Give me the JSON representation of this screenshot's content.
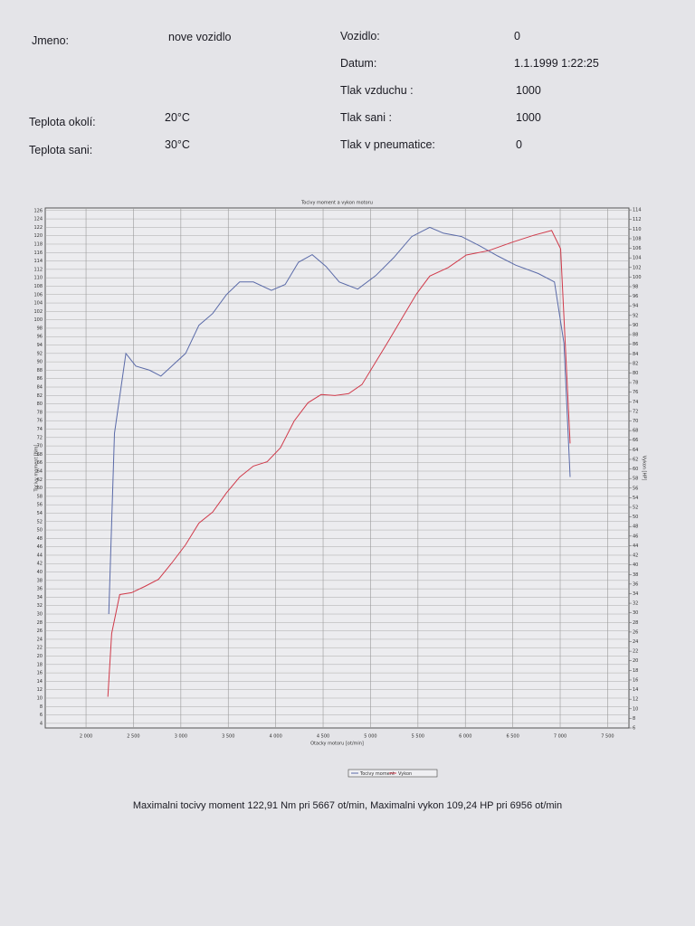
{
  "header": {
    "fields": [
      {
        "label": "Jmeno:",
        "value": "nove vozidlo"
      },
      {
        "label": "Vozidlo:",
        "value": "0"
      },
      {
        "label": "Datum:",
        "value": "1.1.1999 1:22:25"
      },
      {
        "label": "Tlak vzduchu :",
        "value": "1000"
      },
      {
        "label": "Teplota okolí:",
        "value": "20°C"
      },
      {
        "label": "Tlak sani :",
        "value": "1000"
      },
      {
        "label": "Teplota sani:",
        "value": "30°C"
      },
      {
        "label": "Tlak v pneumatice:",
        "value": "0"
      }
    ]
  },
  "chart_data": {
    "type": "line",
    "title": "Tocivy moment a vykon motoru",
    "x_label": "Otacky motoru [ot/min]",
    "y_label": "Tocivy moment [Nm]",
    "y2_label": "Vykon [HP]",
    "xlim": [
      1570,
      7725
    ],
    "xticks": [
      {
        "value": 2000,
        "label": "2 000"
      },
      {
        "value": 2500,
        "label": "2 500"
      },
      {
        "value": 3000,
        "label": "3 000"
      },
      {
        "value": 3500,
        "label": "3 500"
      },
      {
        "value": 4000,
        "label": "4 000"
      },
      {
        "value": 4500,
        "label": "4 500"
      },
      {
        "value": 5000,
        "label": "5 000"
      },
      {
        "value": 5500,
        "label": "5 500"
      },
      {
        "value": 6000,
        "label": "6 000"
      },
      {
        "value": 6500,
        "label": "6 500"
      },
      {
        "value": 7000,
        "label": "7 000"
      },
      {
        "value": 7500,
        "label": "7 500"
      }
    ],
    "ylim": [
      2.9,
      126.6
    ],
    "yticks": [
      4,
      6,
      8,
      10,
      12,
      14,
      16,
      18,
      20,
      22,
      24,
      26,
      28,
      30,
      32,
      34,
      36,
      38,
      40,
      42,
      44,
      46,
      48,
      50,
      52,
      54,
      56,
      58,
      60,
      62,
      64,
      66,
      68,
      70,
      72,
      74,
      76,
      78,
      80,
      82,
      84,
      86,
      88,
      90,
      92,
      94,
      96,
      98,
      100,
      102,
      104,
      106,
      108,
      110,
      112,
      114,
      116,
      118,
      120,
      122,
      124,
      126
    ],
    "y2lim": [
      6,
      114.4
    ],
    "y2ticks": [
      6,
      8,
      10,
      12,
      14,
      16,
      18,
      20,
      22,
      24,
      26,
      28,
      30,
      32,
      34,
      36,
      38,
      40,
      42,
      44,
      46,
      48,
      50,
      52,
      54,
      56,
      58,
      60,
      62,
      64,
      66,
      68,
      70,
      72,
      74,
      76,
      78,
      80,
      82,
      84,
      86,
      88,
      90,
      92,
      94,
      96,
      98,
      100,
      102,
      104,
      106,
      108,
      110,
      112,
      114
    ],
    "grid": true,
    "series": [
      {
        "name": "Tocivy moment",
        "color": "#5a6aa8",
        "x": [
          2240,
          2300,
          2420,
          2525,
          2670,
          2790,
          2905,
          3050,
          3190,
          3335,
          3480,
          3620,
          3765,
          3955,
          4100,
          4240,
          4385,
          4530,
          4670,
          4865,
          5055,
          5245,
          5435,
          5625,
          5770,
          5960,
          6150,
          6340,
          6530,
          6770,
          6940,
          7040,
          7105
        ],
        "values": [
          30,
          73,
          92,
          89,
          88,
          86.6,
          89,
          92,
          98.7,
          101.5,
          106,
          109,
          109,
          107,
          108.4,
          113.7,
          115.5,
          112.7,
          109,
          107.3,
          110.5,
          114.8,
          119.8,
          122,
          120.6,
          119.8,
          117.6,
          115.2,
          113,
          111,
          109,
          94.4,
          62.6
        ]
      },
      {
        "name": "Vykon",
        "color": "#d03a4a",
        "axis": "y2",
        "x": [
          2230,
          2270,
          2355,
          2480,
          2620,
          2765,
          2905,
          3050,
          3190,
          3335,
          3480,
          3620,
          3765,
          3910,
          4050,
          4195,
          4340,
          4480,
          4625,
          4770,
          4910,
          5055,
          5200,
          5340,
          5485,
          5625,
          5820,
          6010,
          6245,
          6485,
          6720,
          6910,
          7005,
          7105
        ],
        "values": [
          12.5,
          25.7,
          33.8,
          34.2,
          35.5,
          37,
          40.4,
          44.2,
          48.7,
          51,
          55,
          58.3,
          60.6,
          61.5,
          64.4,
          70,
          73.8,
          75.5,
          75.3,
          75.7,
          77.6,
          82.3,
          87,
          91.7,
          96.5,
          100.2,
          102,
          104.6,
          105.5,
          107.2,
          108.7,
          109.7,
          105.9,
          65.3
        ]
      }
    ]
  },
  "footer": "Maximalni tocivy moment 122,91 Nm pri 5667 ot/min,  Maximalni vykon 109,24 HP pri 6956 ot/min"
}
